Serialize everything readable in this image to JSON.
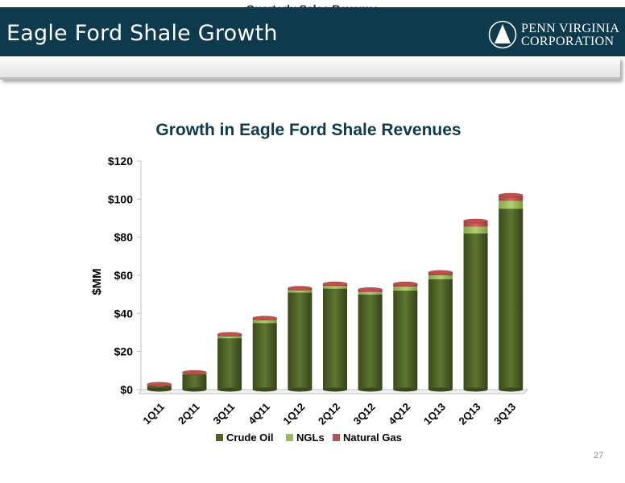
{
  "header": {
    "title": "Eagle Ford Shale Growth",
    "logo_line1": "PENN VIRGINIA",
    "logo_line2": "CORPORATION"
  },
  "subheader": {
    "label": "Quarterly Sales Revenue"
  },
  "page_number": "27",
  "colors": {
    "header_bg": "#0e3a4e",
    "title_text": "#0e3a4e",
    "crude_oil": "#4f6228",
    "ngls": "#9bbb59",
    "natural_gas": "#c0504d"
  },
  "chart_data": {
    "type": "bar",
    "stacked": true,
    "title": "Growth in Eagle Ford Shale Revenues",
    "ylabel": "$MM",
    "xlabel": "",
    "categories": [
      "1Q11",
      "2Q11",
      "3Q11",
      "4Q11",
      "1Q12",
      "2Q12",
      "3Q12",
      "4Q12",
      "1Q13",
      "2Q13",
      "3Q13"
    ],
    "ylim": [
      0,
      120
    ],
    "yticks": [
      0,
      20,
      40,
      60,
      80,
      100,
      120
    ],
    "ytick_labels": [
      "$0",
      "$20",
      "$40",
      "$60",
      "$80",
      "$100",
      "$120"
    ],
    "series": [
      {
        "name": "Crude Oil",
        "values": [
          2,
          8,
          27,
          35,
          51,
          53,
          50,
          52,
          58,
          82,
          95
        ]
      },
      {
        "name": "NGLs",
        "values": [
          0.3,
          0.5,
          1,
          1.5,
          1.2,
          1.5,
          1.2,
          2,
          2,
          3.5,
          4
        ]
      },
      {
        "name": "Natural Gas",
        "values": [
          0.5,
          0.5,
          1,
          1,
          1,
          1,
          1.3,
          1.5,
          1.5,
          3,
          3
        ]
      }
    ],
    "legend_position": "bottom",
    "grid": false
  }
}
